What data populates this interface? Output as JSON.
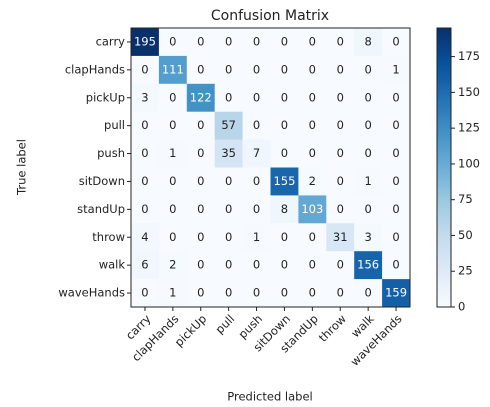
{
  "chart_data": {
    "type": "heatmap",
    "title": "Confusion Matrix",
    "xlabel": "Predicted label",
    "ylabel": "True label",
    "categories": [
      "carry",
      "clapHands",
      "pickUp",
      "pull",
      "push",
      "sitDown",
      "standUp",
      "throw",
      "walk",
      "waveHands"
    ],
    "matrix": [
      [
        195,
        0,
        0,
        0,
        0,
        0,
        0,
        0,
        8,
        0
      ],
      [
        0,
        111,
        0,
        0,
        0,
        0,
        0,
        0,
        0,
        1
      ],
      [
        3,
        0,
        122,
        0,
        0,
        0,
        0,
        0,
        0,
        0
      ],
      [
        0,
        0,
        0,
        57,
        0,
        0,
        0,
        0,
        0,
        0
      ],
      [
        0,
        1,
        0,
        35,
        7,
        0,
        0,
        0,
        0,
        0
      ],
      [
        0,
        0,
        0,
        0,
        0,
        155,
        2,
        0,
        1,
        0
      ],
      [
        0,
        0,
        0,
        0,
        0,
        8,
        103,
        0,
        0,
        0
      ],
      [
        4,
        0,
        0,
        0,
        1,
        0,
        0,
        31,
        3,
        0
      ],
      [
        6,
        2,
        0,
        0,
        0,
        0,
        0,
        0,
        156,
        0
      ],
      [
        0,
        1,
        0,
        0,
        0,
        0,
        0,
        0,
        0,
        159
      ]
    ],
    "colormap": [
      "#f7fbff",
      "#deebf7",
      "#c6dbef",
      "#9ecae1",
      "#6baed6",
      "#4292c6",
      "#2171b5",
      "#08519c",
      "#08306b"
    ],
    "clim": [
      0,
      195
    ],
    "cticks": [
      0,
      25,
      50,
      75,
      100,
      125,
      150,
      175
    ]
  }
}
